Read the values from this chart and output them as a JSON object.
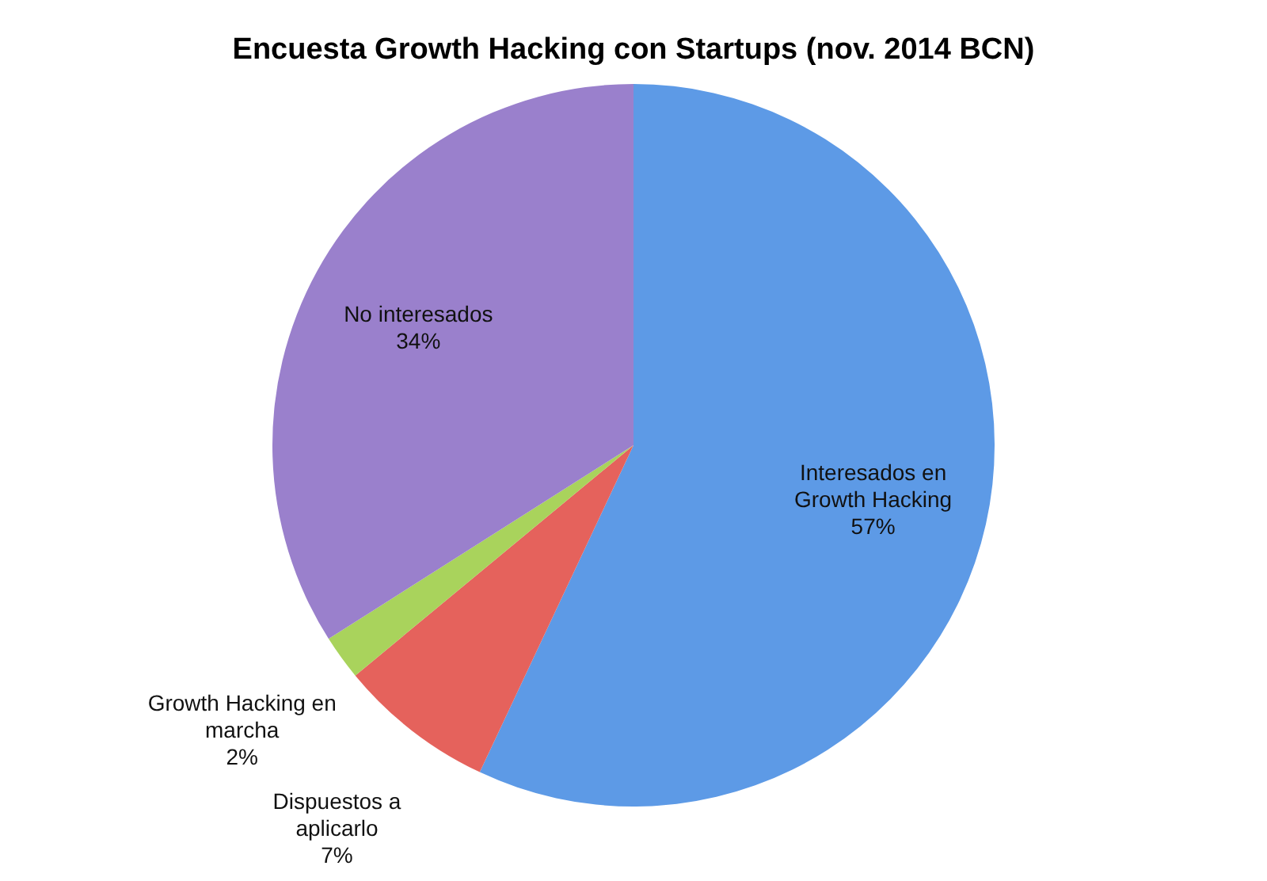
{
  "chart_data": {
    "type": "pie",
    "title": "Encuesta Growth Hacking con Startups (nov. 2014 BCN)",
    "categories": [
      "Interesados en Growth Hacking",
      "Dispuestos a aplicarlo",
      "Growth Hacking en marcha",
      "No interesados"
    ],
    "values": [
      57,
      7,
      2,
      34
    ],
    "value_labels": [
      "57%",
      "7%",
      "2%",
      "34%"
    ],
    "colors": [
      "#5d9ae6",
      "#e5625c",
      "#a9d35c",
      "#9a80cc"
    ]
  }
}
